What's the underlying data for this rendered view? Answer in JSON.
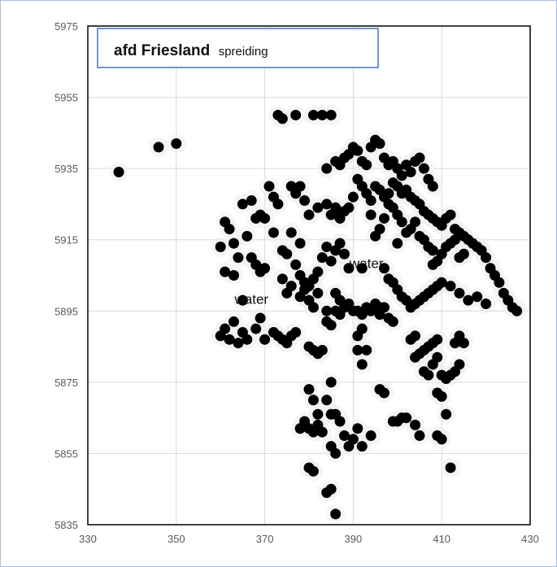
{
  "chart_data": {
    "type": "scatter",
    "title": "afd Friesland",
    "subtitle": "spreiding",
    "xlabel": "",
    "ylabel": "",
    "xlim": [
      330,
      430
    ],
    "ylim": [
      5835,
      5975
    ],
    "xticks": [
      "330",
      "350",
      "370",
      "390",
      "410",
      "430"
    ],
    "yticks": [
      "5975",
      "5955",
      "5935",
      "5915",
      "5895",
      "5875",
      "5855",
      "5835"
    ],
    "grid": true,
    "legend": "none",
    "annotations": [
      {
        "text": "water",
        "x": 393,
        "y": 5907
      },
      {
        "text": "water",
        "x": 367,
        "y": 5897
      }
    ],
    "points": [
      [
        337,
        5934
      ],
      [
        346,
        5941
      ],
      [
        350,
        5942
      ],
      [
        373,
        5950
      ],
      [
        374,
        5949
      ],
      [
        377,
        5950
      ],
      [
        381,
        5950
      ],
      [
        383,
        5950
      ],
      [
        385,
        5950
      ],
      [
        360,
        5913
      ],
      [
        361,
        5920
      ],
      [
        362,
        5918
      ],
      [
        363,
        5914
      ],
      [
        364,
        5910
      ],
      [
        361,
        5906
      ],
      [
        363,
        5905
      ],
      [
        365,
        5898
      ],
      [
        365,
        5925
      ],
      [
        367,
        5926
      ],
      [
        368,
        5921
      ],
      [
        369,
        5922
      ],
      [
        370,
        5921
      ],
      [
        371,
        5930
      ],
      [
        372,
        5927
      ],
      [
        373,
        5925
      ],
      [
        366,
        5916
      ],
      [
        367,
        5910
      ],
      [
        368,
        5908
      ],
      [
        369,
        5906
      ],
      [
        370,
        5907
      ],
      [
        372,
        5917
      ],
      [
        374,
        5912
      ],
      [
        375,
        5911
      ],
      [
        376,
        5930
      ],
      [
        377,
        5928
      ],
      [
        378,
        5930
      ],
      [
        379,
        5926
      ],
      [
        376,
        5917
      ],
      [
        378,
        5914
      ],
      [
        380,
        5922
      ],
      [
        382,
        5924
      ],
      [
        384,
        5925
      ],
      [
        385,
        5922
      ],
      [
        386,
        5923
      ],
      [
        387,
        5921
      ],
      [
        386,
        5924
      ],
      [
        388,
        5923
      ],
      [
        389,
        5924
      ],
      [
        390,
        5927
      ],
      [
        377,
        5908
      ],
      [
        378,
        5905
      ],
      [
        379,
        5903
      ],
      [
        380,
        5902
      ],
      [
        381,
        5904
      ],
      [
        382,
        5906
      ],
      [
        383,
        5910
      ],
      [
        384,
        5913
      ],
      [
        385,
        5909
      ],
      [
        386,
        5912
      ],
      [
        387,
        5914
      ],
      [
        388,
        5911
      ],
      [
        389,
        5907
      ],
      [
        392,
        5907
      ],
      [
        386,
        5900
      ],
      [
        387,
        5898
      ],
      [
        382,
        5900
      ],
      [
        380,
        5898
      ],
      [
        381,
        5896
      ],
      [
        378,
        5899
      ],
      [
        379,
        5901
      ],
      [
        376,
        5902
      ],
      [
        374,
        5904
      ],
      [
        375,
        5900
      ],
      [
        360,
        5888
      ],
      [
        361,
        5890
      ],
      [
        362,
        5887
      ],
      [
        363,
        5892
      ],
      [
        364,
        5886
      ],
      [
        365,
        5889
      ],
      [
        366,
        5887
      ],
      [
        368,
        5890
      ],
      [
        369,
        5893
      ],
      [
        370,
        5887
      ],
      [
        372,
        5889
      ],
      [
        373,
        5888
      ],
      [
        374,
        5887
      ],
      [
        375,
        5886
      ],
      [
        376,
        5888
      ],
      [
        377,
        5889
      ],
      [
        380,
        5885
      ],
      [
        381,
        5884
      ],
      [
        382,
        5883
      ],
      [
        383,
        5884
      ],
      [
        384,
        5892
      ],
      [
        385,
        5891
      ],
      [
        386,
        5895
      ],
      [
        387,
        5894
      ],
      [
        384,
        5895
      ],
      [
        388,
        5896
      ],
      [
        389,
        5897
      ],
      [
        390,
        5895
      ],
      [
        391,
        5895
      ],
      [
        392,
        5894
      ],
      [
        393,
        5896
      ],
      [
        394,
        5895
      ],
      [
        395,
        5897
      ],
      [
        396,
        5894
      ],
      [
        397,
        5896
      ],
      [
        398,
        5893
      ],
      [
        399,
        5892
      ],
      [
        396,
        5896
      ],
      [
        391,
        5888
      ],
      [
        391,
        5884
      ],
      [
        392,
        5890
      ],
      [
        393,
        5884
      ],
      [
        392,
        5880
      ],
      [
        385,
        5875
      ],
      [
        384,
        5870
      ],
      [
        385,
        5866
      ],
      [
        386,
        5866
      ],
      [
        387,
        5864
      ],
      [
        388,
        5860
      ],
      [
        389,
        5857
      ],
      [
        390,
        5859
      ],
      [
        391,
        5862
      ],
      [
        392,
        5857
      ],
      [
        394,
        5860
      ],
      [
        396,
        5873
      ],
      [
        397,
        5872
      ],
      [
        399,
        5864
      ],
      [
        400,
        5864
      ],
      [
        401,
        5865
      ],
      [
        402,
        5865
      ],
      [
        404,
        5863
      ],
      [
        405,
        5860
      ],
      [
        409,
        5860
      ],
      [
        410,
        5859
      ],
      [
        412,
        5851
      ],
      [
        411,
        5866
      ],
      [
        410,
        5871
      ],
      [
        409,
        5872
      ],
      [
        406,
        5878
      ],
      [
        407,
        5877
      ],
      [
        408,
        5880
      ],
      [
        409,
        5882
      ],
      [
        410,
        5877
      ],
      [
        411,
        5876
      ],
      [
        412,
        5877
      ],
      [
        413,
        5878
      ],
      [
        414,
        5880
      ],
      [
        413,
        5886
      ],
      [
        414,
        5888
      ],
      [
        415,
        5886
      ],
      [
        404,
        5882
      ],
      [
        405,
        5883
      ],
      [
        406,
        5884
      ],
      [
        407,
        5885
      ],
      [
        408,
        5886
      ],
      [
        409,
        5887
      ],
      [
        404,
        5888
      ],
      [
        403,
        5887
      ],
      [
        378,
        5862
      ],
      [
        379,
        5864
      ],
      [
        380,
        5862
      ],
      [
        381,
        5861
      ],
      [
        382,
        5863
      ],
      [
        383,
        5861
      ],
      [
        385,
        5857
      ],
      [
        386,
        5855
      ],
      [
        380,
        5851
      ],
      [
        381,
        5850
      ],
      [
        384,
        5844
      ],
      [
        385,
        5845
      ],
      [
        386,
        5838
      ],
      [
        381,
        5870
      ],
      [
        380,
        5873
      ],
      [
        382,
        5866
      ],
      [
        384,
        5935
      ],
      [
        386,
        5937
      ],
      [
        387,
        5936
      ],
      [
        388,
        5938
      ],
      [
        389,
        5939
      ],
      [
        390,
        5941
      ],
      [
        391,
        5940
      ],
      [
        392,
        5937
      ],
      [
        393,
        5936
      ],
      [
        394,
        5941
      ],
      [
        395,
        5943
      ],
      [
        396,
        5942
      ],
      [
        397,
        5938
      ],
      [
        398,
        5936
      ],
      [
        399,
        5937
      ],
      [
        400,
        5935
      ],
      [
        401,
        5933
      ],
      [
        402,
        5936
      ],
      [
        403,
        5934
      ],
      [
        404,
        5937
      ],
      [
        405,
        5938
      ],
      [
        406,
        5935
      ],
      [
        407,
        5932
      ],
      [
        408,
        5930
      ],
      [
        391,
        5932
      ],
      [
        392,
        5930
      ],
      [
        393,
        5928
      ],
      [
        394,
        5926
      ],
      [
        395,
        5930
      ],
      [
        396,
        5929
      ],
      [
        397,
        5927
      ],
      [
        398,
        5928
      ],
      [
        399,
        5931
      ],
      [
        400,
        5930
      ],
      [
        401,
        5928
      ],
      [
        402,
        5929
      ],
      [
        403,
        5927
      ],
      [
        404,
        5926
      ],
      [
        405,
        5925
      ],
      [
        406,
        5923
      ],
      [
        407,
        5922
      ],
      [
        408,
        5921
      ],
      [
        409,
        5920
      ],
      [
        410,
        5919
      ],
      [
        411,
        5921
      ],
      [
        412,
        5922
      ],
      [
        413,
        5918
      ],
      [
        414,
        5917
      ],
      [
        415,
        5916
      ],
      [
        416,
        5915
      ],
      [
        417,
        5914
      ],
      [
        418,
        5913
      ],
      [
        419,
        5912
      ],
      [
        420,
        5910
      ],
      [
        421,
        5907
      ],
      [
        422,
        5905
      ],
      [
        423,
        5903
      ],
      [
        424,
        5900
      ],
      [
        425,
        5898
      ],
      [
        426,
        5896
      ],
      [
        427,
        5895
      ],
      [
        420,
        5897
      ],
      [
        418,
        5899
      ],
      [
        416,
        5898
      ],
      [
        414,
        5900
      ],
      [
        412,
        5902
      ],
      [
        410,
        5903
      ],
      [
        409,
        5902
      ],
      [
        408,
        5901
      ],
      [
        407,
        5900
      ],
      [
        406,
        5899
      ],
      [
        405,
        5898
      ],
      [
        404,
        5897
      ],
      [
        403,
        5896
      ],
      [
        402,
        5898
      ],
      [
        401,
        5899
      ],
      [
        400,
        5901
      ],
      [
        399,
        5903
      ],
      [
        398,
        5904
      ],
      [
        397,
        5907
      ],
      [
        408,
        5908
      ],
      [
        409,
        5909
      ],
      [
        410,
        5911
      ],
      [
        411,
        5913
      ],
      [
        412,
        5914
      ],
      [
        413,
        5915
      ],
      [
        414,
        5910
      ],
      [
        415,
        5911
      ],
      [
        402,
        5917
      ],
      [
        403,
        5918
      ],
      [
        404,
        5920
      ],
      [
        405,
        5916
      ],
      [
        406,
        5915
      ],
      [
        407,
        5913
      ],
      [
        408,
        5912
      ],
      [
        400,
        5914
      ],
      [
        401,
        5920
      ],
      [
        400,
        5922
      ],
      [
        399,
        5924
      ],
      [
        398,
        5925
      ],
      [
        397,
        5921
      ],
      [
        396,
        5918
      ],
      [
        395,
        5916
      ],
      [
        394,
        5922
      ]
    ]
  }
}
